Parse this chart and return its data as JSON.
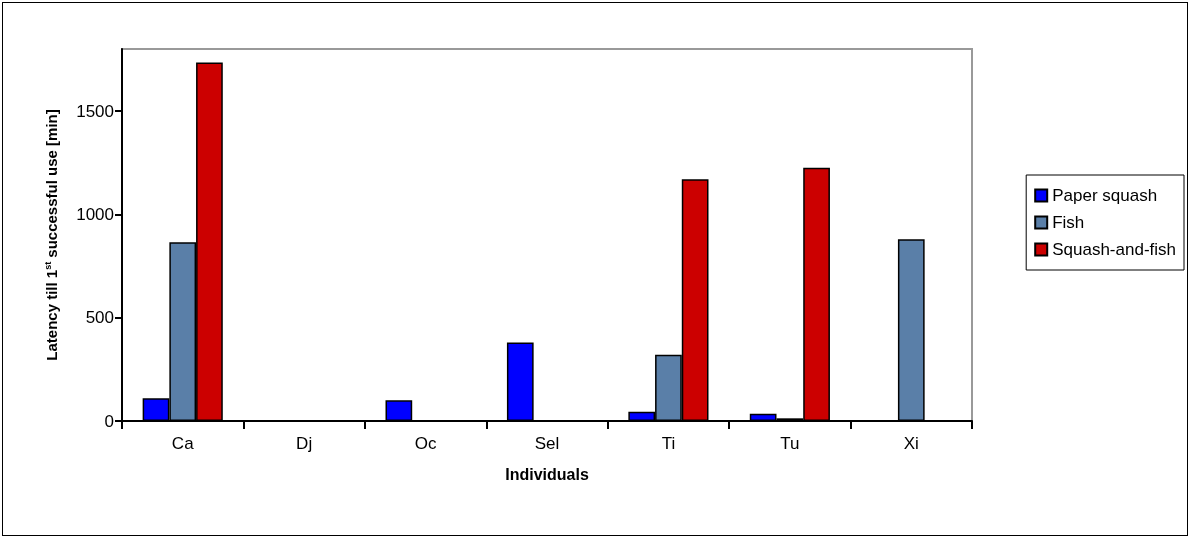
{
  "chart_data": {
    "type": "bar",
    "xlabel": "Individuals",
    "ylabel": "Latency till 1$^{st}$ successful use [min]",
    "categories": [
      "Ca",
      "Dj",
      "Oc",
      "Sel",
      "Ti",
      "Tu",
      "Xi"
    ],
    "series": [
      {
        "name": "Paper squash",
        "color": "#0000ff",
        "values": [
          110,
          null,
          100,
          380,
          45,
          35,
          null
        ]
      },
      {
        "name": "Fish",
        "color": "#5a7fa8",
        "values": [
          865,
          null,
          null,
          null,
          320,
          13,
          880
        ]
      },
      {
        "name": "Squash-and-fish",
        "color": "#cc0000",
        "values": [
          1735,
          null,
          null,
          null,
          1170,
          1225,
          null
        ]
      }
    ],
    "ylim": [
      0,
      1800
    ],
    "yticks": [
      0,
      500,
      1000,
      1500
    ],
    "grid": false,
    "legend": "right"
  }
}
